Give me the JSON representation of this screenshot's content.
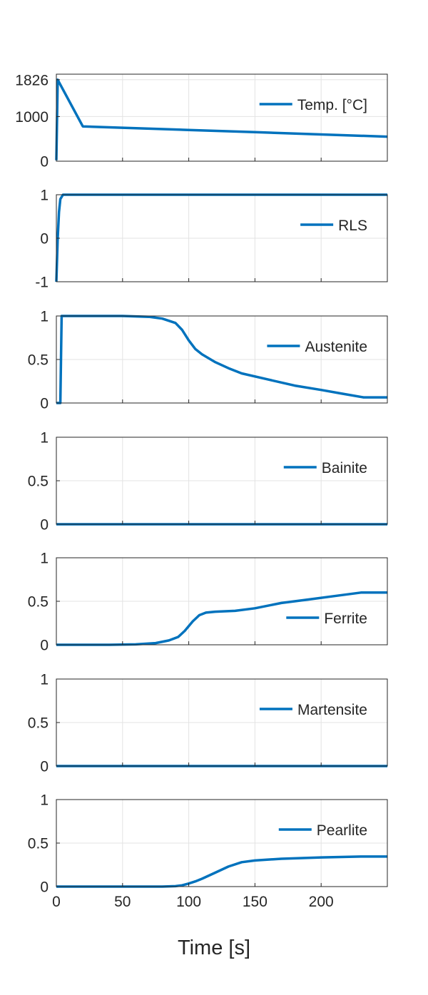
{
  "figure": {
    "xlabel": "Time [s]",
    "x_ticks": [
      0,
      50,
      100,
      150,
      200
    ],
    "x_range": [
      0,
      250
    ],
    "line_color": "#0072BD",
    "grid": true,
    "legend_position": "right"
  },
  "chart_data": [
    {
      "type": "line",
      "ylim": [
        0,
        1950
      ],
      "y_ticks": [
        0,
        1000,
        1826
      ],
      "y_tick_labels": [
        "0",
        "1000",
        "1826"
      ],
      "series": [
        {
          "name": "Temp. [°C]",
          "x": [
            0,
            1,
            20,
            50,
            100,
            150,
            200,
            250
          ],
          "y": [
            20,
            1826,
            780,
            750,
            700,
            650,
            600,
            550
          ]
        }
      ]
    },
    {
      "type": "line",
      "ylim": [
        -1,
        1
      ],
      "y_ticks": [
        -1,
        0,
        1
      ],
      "y_tick_labels": [
        "-1",
        "0",
        "1"
      ],
      "series": [
        {
          "name": "RLS",
          "x": [
            0,
            1,
            2,
            3,
            5,
            250
          ],
          "y": [
            -1,
            0,
            0.6,
            0.9,
            1,
            1
          ]
        }
      ]
    },
    {
      "type": "line",
      "ylim": [
        0,
        1
      ],
      "y_ticks": [
        0,
        0.5,
        1
      ],
      "y_tick_labels": [
        "0",
        "0.5",
        "1"
      ],
      "series": [
        {
          "name": "Austenite",
          "x": [
            0,
            2,
            3,
            4,
            50,
            70,
            80,
            90,
            95,
            100,
            105,
            110,
            120,
            130,
            140,
            160,
            180,
            200,
            215,
            232,
            250
          ],
          "y": [
            0,
            0,
            0,
            1,
            1,
            0.99,
            0.97,
            0.92,
            0.84,
            0.72,
            0.62,
            0.56,
            0.47,
            0.4,
            0.34,
            0.27,
            0.2,
            0.15,
            0.11,
            0.065,
            0.065
          ]
        }
      ]
    },
    {
      "type": "line",
      "ylim": [
        0,
        1
      ],
      "y_ticks": [
        0,
        0.5,
        1
      ],
      "y_tick_labels": [
        "0",
        "0.5",
        "1"
      ],
      "series": [
        {
          "name": "Bainite",
          "x": [
            0,
            250
          ],
          "y": [
            0,
            0
          ]
        }
      ]
    },
    {
      "type": "line",
      "ylim": [
        0,
        1
      ],
      "y_ticks": [
        0,
        0.5,
        1
      ],
      "y_tick_labels": [
        "0",
        "0.5",
        "1"
      ],
      "series": [
        {
          "name": "Ferrite",
          "x": [
            0,
            40,
            60,
            75,
            85,
            92,
            97,
            103,
            108,
            113,
            120,
            135,
            150,
            170,
            190,
            210,
            230,
            250
          ],
          "y": [
            0,
            0,
            0.005,
            0.02,
            0.05,
            0.09,
            0.16,
            0.27,
            0.34,
            0.37,
            0.38,
            0.39,
            0.42,
            0.48,
            0.52,
            0.56,
            0.6,
            0.6
          ]
        }
      ]
    },
    {
      "type": "line",
      "ylim": [
        0,
        1
      ],
      "y_ticks": [
        0,
        0.5,
        1
      ],
      "y_tick_labels": [
        "0",
        "0.5",
        "1"
      ],
      "series": [
        {
          "name": "Martensite",
          "x": [
            0,
            250
          ],
          "y": [
            0,
            0
          ]
        }
      ]
    },
    {
      "type": "line",
      "ylim": [
        0,
        1
      ],
      "y_ticks": [
        0,
        0.5,
        1
      ],
      "y_tick_labels": [
        "0",
        "0.5",
        "1"
      ],
      "series": [
        {
          "name": "Pearlite",
          "x": [
            0,
            80,
            90,
            95,
            100,
            105,
            110,
            120,
            130,
            140,
            150,
            170,
            200,
            230,
            250
          ],
          "y": [
            0,
            0,
            0.005,
            0.015,
            0.035,
            0.06,
            0.09,
            0.16,
            0.23,
            0.28,
            0.3,
            0.32,
            0.335,
            0.345,
            0.345
          ]
        }
      ]
    }
  ]
}
